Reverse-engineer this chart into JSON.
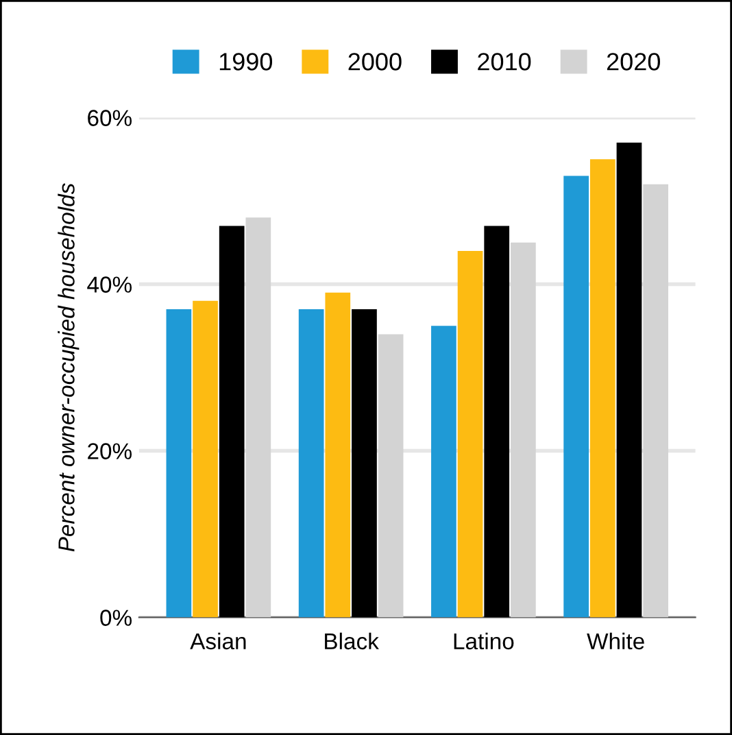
{
  "chart_data": {
    "type": "bar",
    "ylabel": "Percent owner-occupied households",
    "categories": [
      "Asian",
      "Black",
      "Latino",
      "White"
    ],
    "series": [
      {
        "name": "1990",
        "color": "#1f9ad6",
        "values": [
          37,
          37,
          35,
          53
        ]
      },
      {
        "name": "2000",
        "color": "#fdbb12",
        "values": [
          38,
          39,
          44,
          55
        ]
      },
      {
        "name": "2010",
        "color": "#000000",
        "values": [
          47,
          37,
          47,
          57
        ]
      },
      {
        "name": "2020",
        "color": "#d3d3d3",
        "values": [
          48,
          34,
          45,
          52
        ]
      }
    ],
    "ylim": [
      0,
      60
    ],
    "yticks": [
      {
        "value": 0,
        "label": "0%"
      },
      {
        "value": 20,
        "label": "20%"
      },
      {
        "value": 40,
        "label": "40%"
      },
      {
        "value": 60,
        "label": "60%"
      }
    ],
    "grid": "y",
    "legend": "top"
  }
}
